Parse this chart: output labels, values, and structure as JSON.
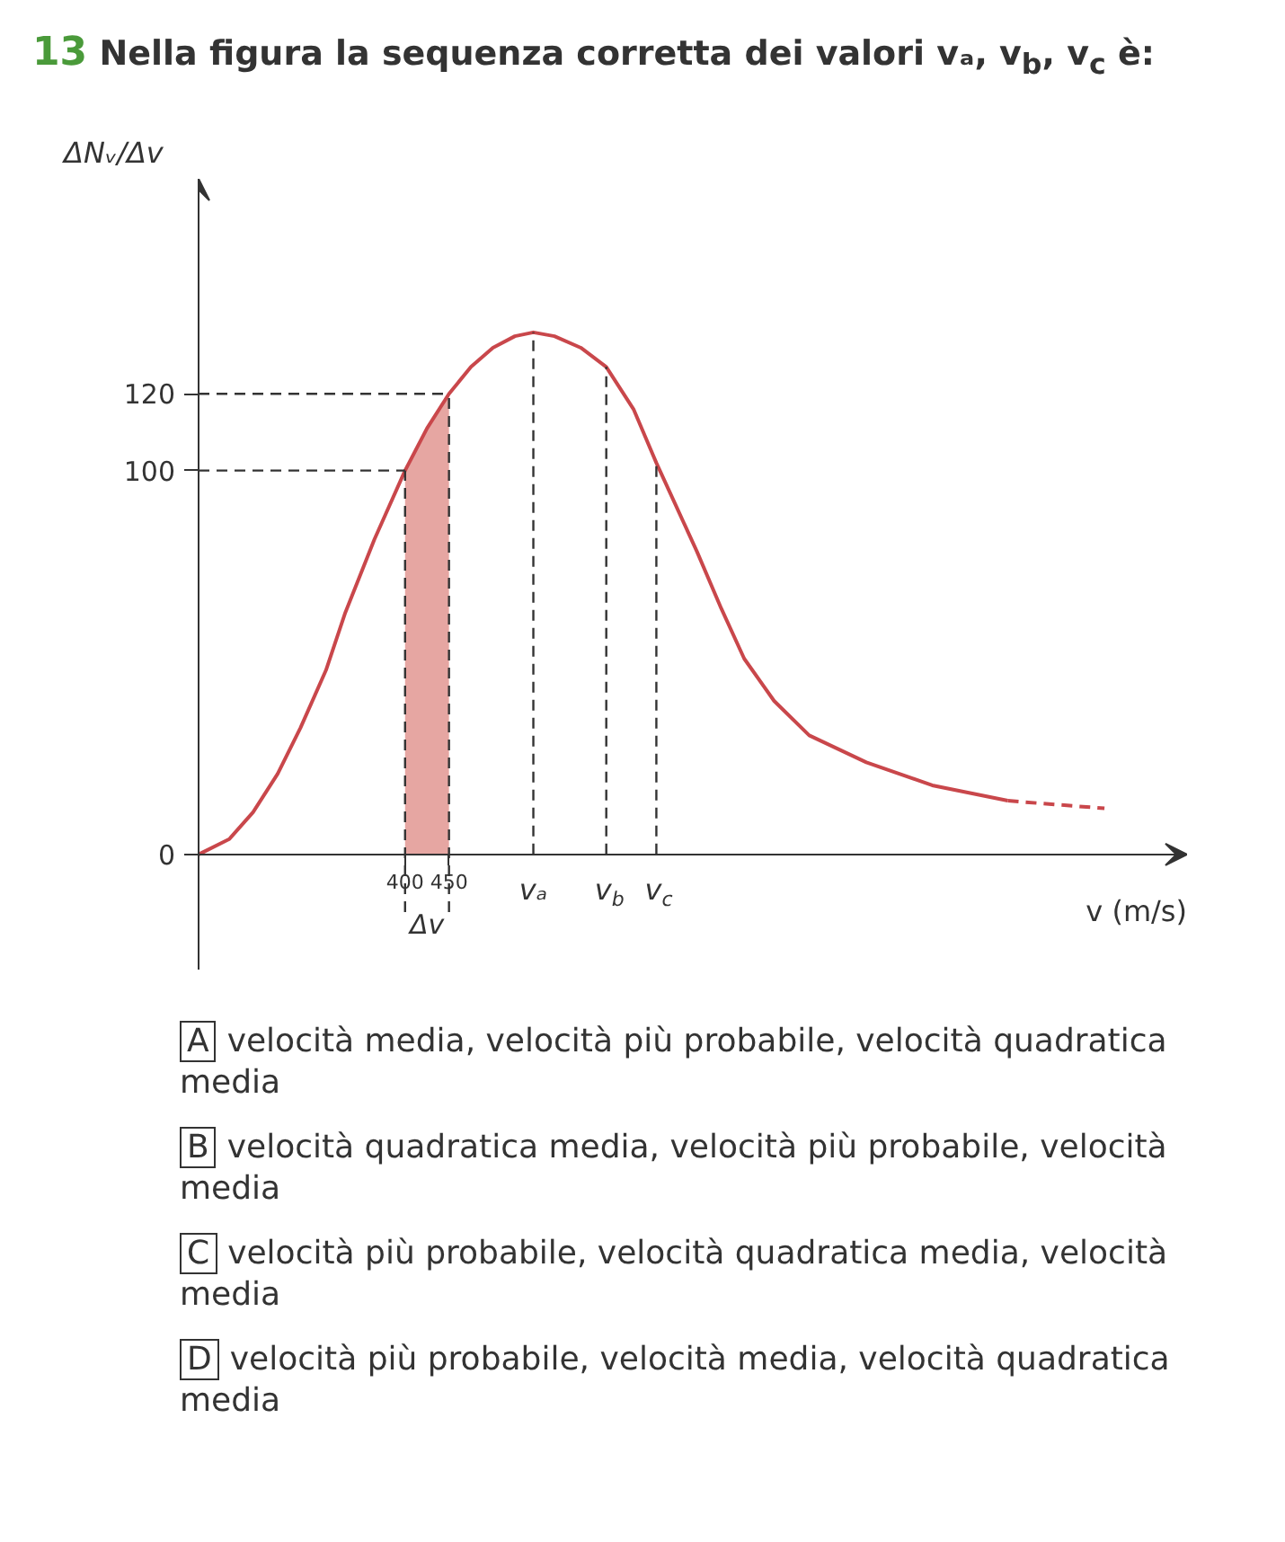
{
  "chart_data": {
    "type": "line",
    "title": "13 Nella figura la sequenza corretta dei valori vₐ, v$_{b}$, v$_{c}$ è:",
    "ylabel": "ΔNᵥ/Δv",
    "xlabel": "v (m/s)",
    "xlim": [
      165,
      1290
    ],
    "ylim": [
      -30,
      176
    ],
    "xticks": [
      400,
      450
    ],
    "yticks": [
      0,
      100,
      120
    ],
    "grid": false,
    "series": [
      {
        "color": "#c9474b",
        "line_style": "solid",
        "x": [
          165,
          200,
          227,
          255,
          281,
          310,
          332,
          365,
          400,
          425,
          450,
          475,
          500,
          525,
          546,
          570,
          600,
          629,
          660,
          686,
          710,
          732,
          760,
          786,
          820,
          860,
          925,
          1000,
          1086
        ],
        "values": [
          0,
          4,
          11,
          21,
          33,
          48,
          63,
          82,
          100,
          111,
          120,
          127,
          132,
          135,
          136,
          135,
          132,
          127,
          116,
          102,
          90,
          79,
          64,
          51,
          40,
          31,
          24,
          18,
          14
        ]
      },
      {
        "color": "#c9474b",
        "line_style": "dashed",
        "x": [
          1086,
          1140,
          1196
        ],
        "values": [
          14,
          13,
          12
        ]
      },
      {
        "type": "area",
        "color": "#e6a6a2",
        "x": [
          400,
          425,
          450
        ],
        "values": [
          100,
          111,
          120
        ]
      }
    ],
    "ref_lines": [
      {
        "axis": "y",
        "value": 100,
        "line_style": "dashed"
      },
      {
        "axis": "y",
        "value": 120,
        "line_style": "dashed"
      },
      {
        "axis": "x",
        "value": 400,
        "line_style": "dashed"
      },
      {
        "axis": "x",
        "value": 450,
        "line_style": "dashed"
      },
      {
        "axis": "x",
        "value": 546,
        "label": "vₐ",
        "line_style": "dashed"
      },
      {
        "axis": "x",
        "value": 629,
        "label": "v$_{b}$",
        "line_style": "dashed"
      },
      {
        "axis": "x",
        "value": 686,
        "label": "v$_{c}$",
        "line_style": "dashed"
      }
    ],
    "annotations": [
      {
        "text": "Δv",
        "x": 425,
        "y": 0
      },
      "A velocità media, velocità più probabile, velocità quadratica media",
      "B velocità quadratica media, velocità più probabile, velocità media",
      "C velocità più probabile, velocità quadratica media, velocità media",
      "D velocità più probabile, velocità media, velocità quadratica media"
    ]
  }
}
